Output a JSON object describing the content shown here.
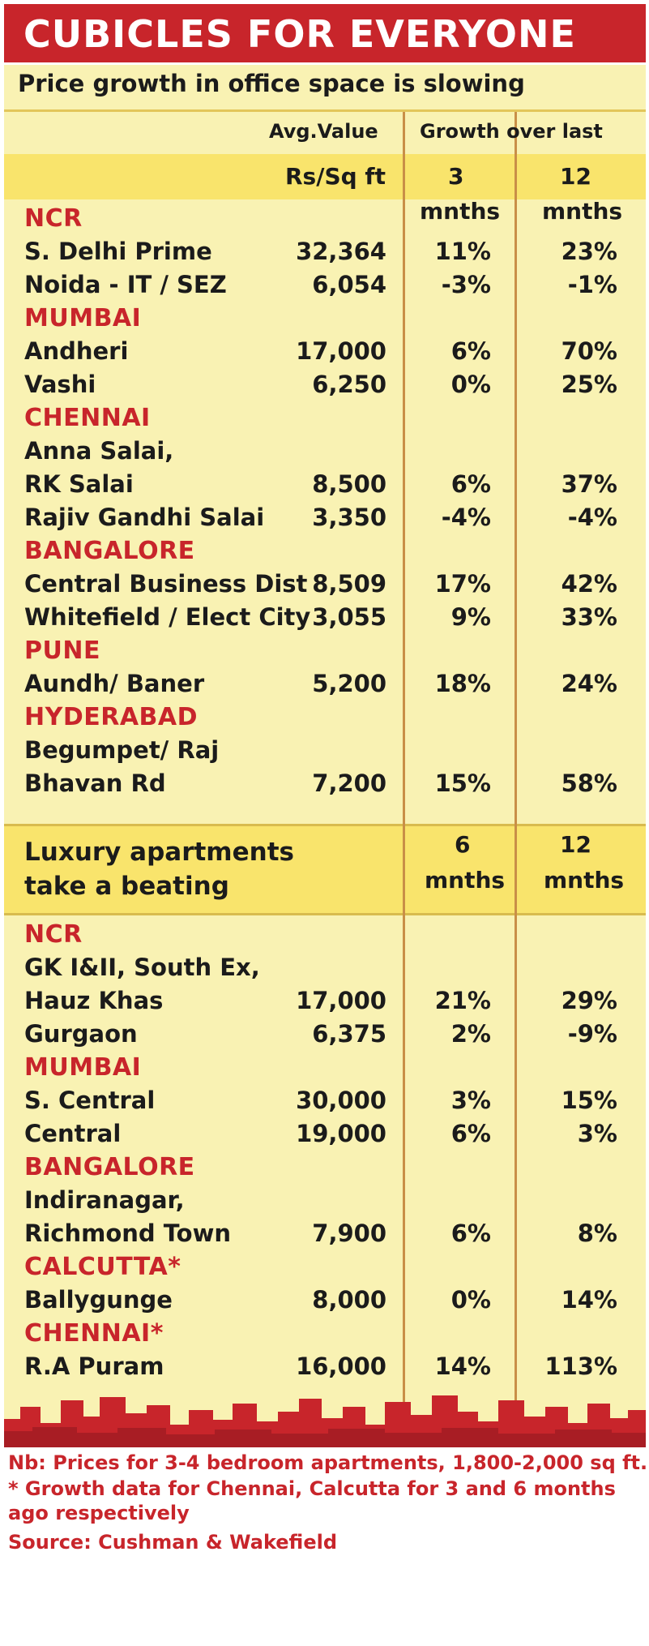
{
  "header": {
    "title": "CUBICLES FOR EVERYONE",
    "subtitle": "Price growth in office space is slowing"
  },
  "columns": {
    "avg_value": "Avg.Value",
    "growth": "Growth over last",
    "unit": "Rs/Sq ft",
    "office_p1_num": "3",
    "office_p2_num": "12",
    "period_word": "mnths",
    "lux_p1_num": "6",
    "lux_p2_num": "12"
  },
  "luxury_heading": [
    "Luxury apartments",
    "take a beating"
  ],
  "colors": {
    "brand_red": "#c8252b",
    "panel": "#f9f2b3",
    "band": "#f9e46c",
    "divider": "#c98f47"
  },
  "chart_data": {
    "type": "table",
    "title": "CUBICLES FOR EVERYONE",
    "sections": [
      {
        "title": "Price growth in office space is slowing",
        "columns": [
          "Avg.Value Rs/Sq ft",
          "Growth over last 3 mnths",
          "Growth over last 12 mnths"
        ],
        "groups": [
          {
            "city": "NCR",
            "rows": [
              {
                "location": [
                  "S. Delhi Prime"
                ],
                "value": "32,364",
                "g1": "11%",
                "g2": "23%"
              },
              {
                "location": [
                  "Noida - IT / SEZ"
                ],
                "value": "6,054",
                "g1": "-3%",
                "g2": "-1%"
              }
            ]
          },
          {
            "city": "MUMBAI",
            "rows": [
              {
                "location": [
                  "Andheri"
                ],
                "value": "17,000",
                "g1": "6%",
                "g2": "70%"
              },
              {
                "location": [
                  "Vashi"
                ],
                "value": "6,250",
                "g1": "0%",
                "g2": "25%"
              }
            ]
          },
          {
            "city": "CHENNAI",
            "rows": [
              {
                "location": [
                  "Anna Salai,",
                  "RK Salai"
                ],
                "value": "8,500",
                "g1": "6%",
                "g2": "37%"
              },
              {
                "location": [
                  "Rajiv Gandhi Salai"
                ],
                "value": "3,350",
                "g1": "-4%",
                "g2": "-4%"
              }
            ]
          },
          {
            "city": "BANGALORE",
            "rows": [
              {
                "location": [
                  "Central Business Dist"
                ],
                "value": "8,509",
                "g1": "17%",
                "g2": "42%"
              },
              {
                "location": [
                  "Whitefield / Elect City"
                ],
                "value": "3,055",
                "g1": "9%",
                "g2": "33%"
              }
            ]
          },
          {
            "city": "PUNE",
            "rows": [
              {
                "location": [
                  "Aundh/ Baner"
                ],
                "value": "5,200",
                "g1": "18%",
                "g2": "24%"
              }
            ]
          },
          {
            "city": "HYDERABAD",
            "rows": [
              {
                "location": [
                  "Begumpet/ Raj",
                  "Bhavan Rd"
                ],
                "value": "7,200",
                "g1": "15%",
                "g2": "58%"
              }
            ]
          }
        ]
      },
      {
        "title": "Luxury apartments take a beating",
        "columns": [
          "Avg.Value Rs/Sq ft",
          "6 mnths",
          "12 mnths"
        ],
        "groups": [
          {
            "city": "NCR",
            "rows": [
              {
                "location": [
                  "GK I&II, South Ex,",
                  "Hauz Khas"
                ],
                "value": "17,000",
                "g1": "21%",
                "g2": "29%"
              },
              {
                "location": [
                  "Gurgaon"
                ],
                "value": "6,375",
                "g1": "2%",
                "g2": "-9%"
              }
            ]
          },
          {
            "city": "MUMBAI",
            "rows": [
              {
                "location": [
                  "S. Central"
                ],
                "value": "30,000",
                "g1": "3%",
                "g2": "15%"
              },
              {
                "location": [
                  "Central"
                ],
                "value": "19,000",
                "g1": "6%",
                "g2": "3%"
              }
            ]
          },
          {
            "city": "BANGALORE",
            "rows": [
              {
                "location": [
                  "Indiranagar,",
                  "Richmond Town"
                ],
                "value": "7,900",
                "g1": "6%",
                "g2": "8%"
              }
            ]
          },
          {
            "city": "CALCUTTA*",
            "rows": [
              {
                "location": [
                  "Ballygunge"
                ],
                "value": "8,000",
                "g1": "0%",
                "g2": "14%"
              }
            ]
          },
          {
            "city": "CHENNAI*",
            "rows": [
              {
                "location": [
                  "R.A Puram"
                ],
                "value": "16,000",
                "g1": "14%",
                "g2": "113%"
              }
            ]
          }
        ]
      }
    ]
  },
  "footnotes": [
    "Nb: Prices for 3-4 bedroom apartments, 1,800-2,000 sq ft.",
    "* Growth data for Chennai, Calcutta for 3 and 6 months",
    "ago respectively",
    "Source: Cushman & Wakefield"
  ]
}
